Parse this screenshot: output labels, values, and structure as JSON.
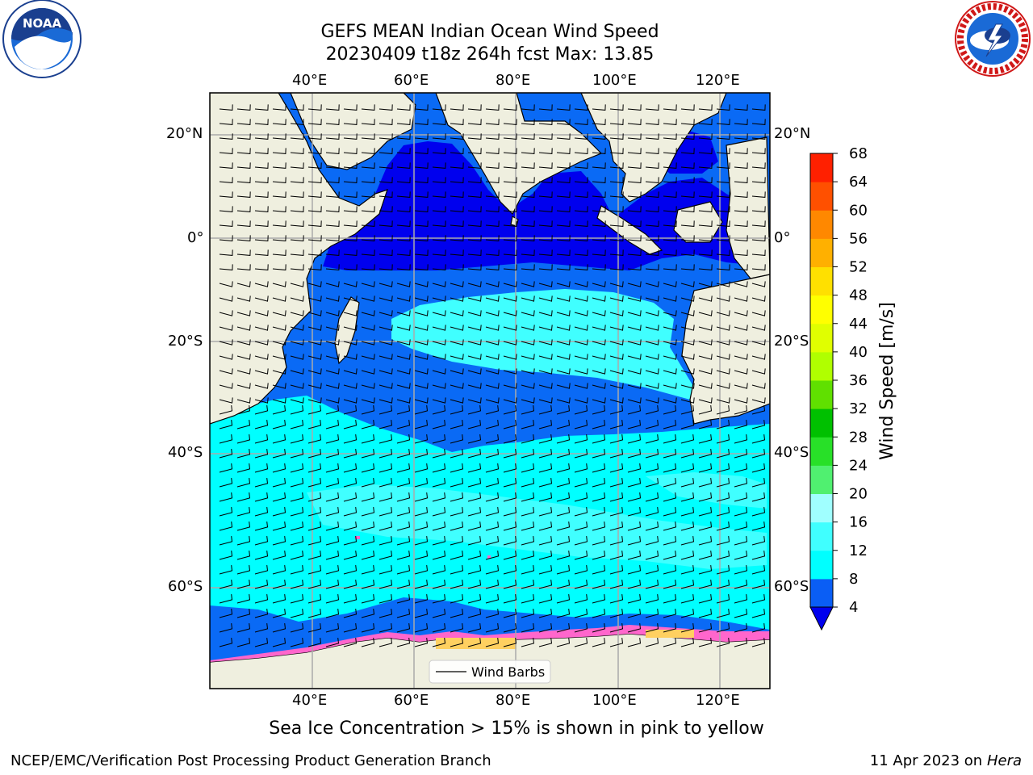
{
  "title": {
    "line1": "GEFS MEAN Indian Ocean Wind Speed",
    "line2": "20230409 t18z 264h fcst   Max: 13.85"
  },
  "axes": {
    "lon_labels": [
      "40°E",
      "60°E",
      "80°E",
      "100°E",
      "120°E"
    ],
    "lat_labels": [
      "20°N",
      "0°",
      "20°S",
      "40°S",
      "60°S"
    ]
  },
  "legend": {
    "label": "Wind Barbs"
  },
  "colorbar": {
    "label": "Wind Speed [m/s]",
    "ticks": [
      "4",
      "8",
      "12",
      "16",
      "20",
      "24",
      "28",
      "32",
      "36",
      "40",
      "44",
      "48",
      "52",
      "56",
      "60",
      "64",
      "68"
    ],
    "colors": [
      "#0a5ef5",
      "#00ffff",
      "#40ffff",
      "#a0ffff",
      "#50f070",
      "#28e028",
      "#00c000",
      "#60e000",
      "#b0ff00",
      "#e0ff00",
      "#ffff00",
      "#ffe000",
      "#ffb000",
      "#ff8800",
      "#ff5000",
      "#ff2000",
      "#ff0000"
    ],
    "extend_color": "#0000ee"
  },
  "colors": {
    "land": "#efefdf",
    "deep_blue": "#0000ee",
    "blue": "#0a6af5",
    "cyan": "#00ffff",
    "light_cyan": "#40ffff",
    "pale_cyan": "#80ffff"
  },
  "caption": "Sea Ice Concentration > 15% is shown in pink to yellow",
  "footer": {
    "left": "NCEP/EMC/Verification Post Processing Product Generation Branch",
    "date": "11 Apr 2023 on ",
    "system": "Hera"
  },
  "logos": {
    "left": "noaa-logo-icon",
    "right": "nws-logo-icon",
    "left_text": "NOAA"
  }
}
